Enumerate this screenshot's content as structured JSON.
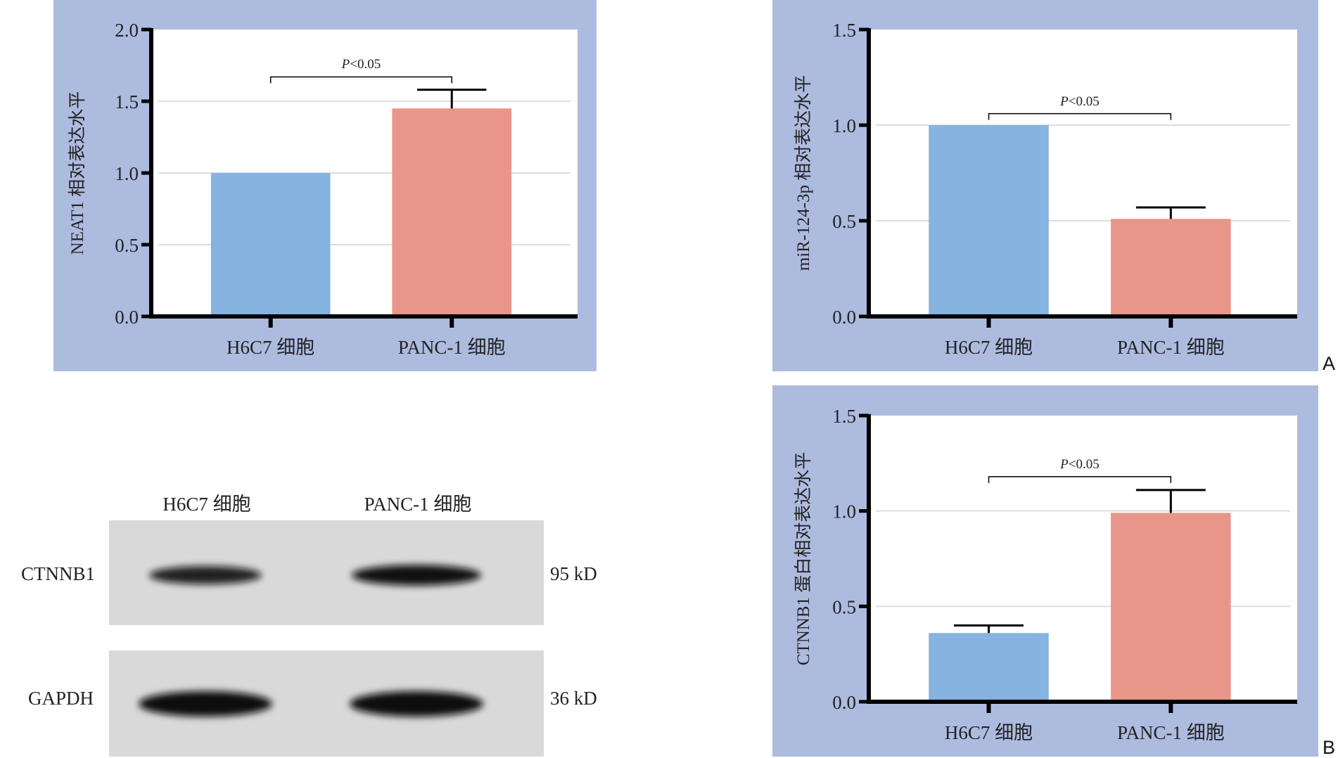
{
  "colors": {
    "panel_bg": "#adbbdf",
    "bar_control": "#86b3e0",
    "bar_cancer": "#e8968a",
    "grid": "#dddddd",
    "blot_bg": "#d9d9d9",
    "band": "#111111"
  },
  "panel_labels": [
    "A",
    "B"
  ],
  "chart_data": [
    {
      "type": "bar",
      "title": "",
      "ylabel": "NEAT1 相对表达水平",
      "categories": [
        "H6C7 细胞",
        "PANC-1 细胞"
      ],
      "values": [
        1.0,
        1.45
      ],
      "errors": [
        0,
        0.13
      ],
      "ylim": [
        0,
        2.0
      ],
      "yticks": [
        "0.0",
        "0.5",
        "1.0",
        "1.5",
        "2.0"
      ],
      "grid": true,
      "significance": {
        "label": "P<0.05",
        "p_italic": "P",
        "rest": "<0.05",
        "level": 1.67
      }
    },
    {
      "type": "bar",
      "title": "",
      "ylabel": "miR-124-3p 相对表达水平",
      "categories": [
        "H6C7 细胞",
        "PANC-1 细胞"
      ],
      "values": [
        1.0,
        0.51
      ],
      "errors": [
        0,
        0.06
      ],
      "ylim": [
        0,
        1.5
      ],
      "yticks": [
        "0.0",
        "0.5",
        "1.0",
        "1.5"
      ],
      "grid": true,
      "significance": {
        "label": "P<0.05",
        "p_italic": "P",
        "rest": "<0.05",
        "level": 1.06
      }
    },
    {
      "type": "bar",
      "title": "",
      "ylabel": "CTNNB1 蛋白相对表达水平",
      "categories": [
        "H6C7 细胞",
        "PANC-1 细胞"
      ],
      "values": [
        0.36,
        0.99
      ],
      "errors": [
        0.04,
        0.12
      ],
      "ylim": [
        0,
        1.5
      ],
      "yticks": [
        "0.0",
        "0.5",
        "1.0",
        "1.5"
      ],
      "grid": true,
      "significance": {
        "label": "P<0.05",
        "p_italic": "P",
        "rest": "<0.05",
        "level": 1.18
      }
    }
  ],
  "western_blot": {
    "lanes": [
      "H6C7 细胞",
      "PANC-1 细胞"
    ],
    "rows": [
      {
        "protein": "CTNNB1",
        "size": "95 kD",
        "intensity": [
          0.75,
          0.95
        ]
      },
      {
        "protein": "GAPDH",
        "size": "36 kD",
        "intensity": [
          1.0,
          1.0
        ]
      }
    ]
  }
}
